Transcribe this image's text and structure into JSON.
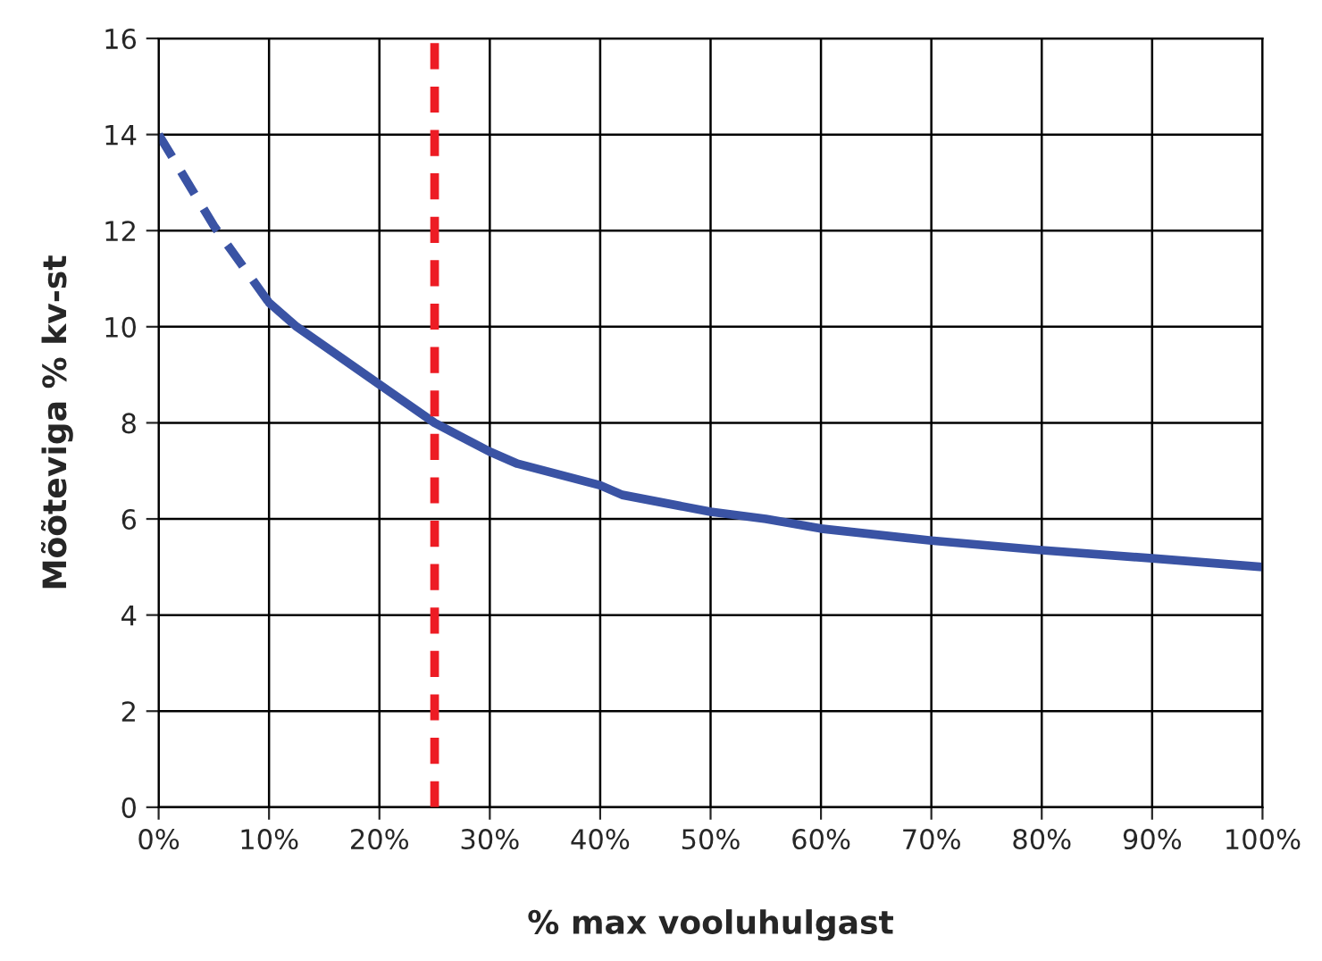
{
  "chart_data": {
    "type": "line",
    "xlabel": "% max vooluhulgast",
    "ylabel": "Mõõteviga % kv-st",
    "xlim": [
      0,
      100
    ],
    "ylim": [
      0,
      16
    ],
    "xticks": [
      {
        "value": 0,
        "label": "0%"
      },
      {
        "value": 10,
        "label": "10%"
      },
      {
        "value": 20,
        "label": "20%"
      },
      {
        "value": 30,
        "label": "30%"
      },
      {
        "value": 40,
        "label": "40%"
      },
      {
        "value": 50,
        "label": "50%"
      },
      {
        "value": 60,
        "label": "60%"
      },
      {
        "value": 70,
        "label": "70%"
      },
      {
        "value": 80,
        "label": "80%"
      },
      {
        "value": 90,
        "label": "90%"
      },
      {
        "value": 100,
        "label": "100%"
      }
    ],
    "yticks": [
      0,
      2,
      4,
      6,
      8,
      10,
      12,
      14,
      16
    ],
    "grid": true,
    "marker": "none",
    "series": [
      {
        "color": "#3a53a4",
        "line_style": "dashed",
        "x": [
          0,
          5,
          10
        ],
        "values": [
          14,
          12.1,
          10.5
        ]
      },
      {
        "color": "#3a53a4",
        "line_style": "solid",
        "x": [
          10,
          12.5,
          20,
          25,
          30,
          32.5,
          40,
          42,
          50,
          55,
          60,
          70,
          80,
          90,
          100
        ],
        "values": [
          10.5,
          10,
          8.8,
          8,
          7.4,
          7.15,
          6.7,
          6.5,
          6.15,
          6,
          5.8,
          5.55,
          5.35,
          5.18,
          5
        ]
      }
    ],
    "ref_lines": [
      {
        "axis": "x",
        "value": 25,
        "color": "#ed1c24",
        "line_style": "dashed"
      }
    ]
  }
}
